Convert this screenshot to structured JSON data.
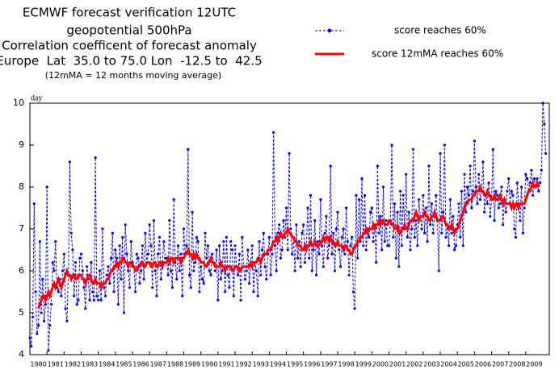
{
  "chart_data": {
    "type": "line",
    "title_lines": [
      "ECMWF forecast verification 12UTC",
      "geopotential 500hPa",
      "Correlation coefficent of forecast anomaly",
      "Europe  Lat  35.0 to 75.0 Lon  -12.5 to  42.5"
    ],
    "subtitle": "(12mMA = 12 months moving average)",
    "y_label": "day",
    "ylim": [
      4,
      10
    ],
    "yticks": [
      4,
      5,
      6,
      7,
      8,
      9,
      10
    ],
    "categories": [
      null,
      null,
      null,
      null,
      null,
      null,
      "1980",
      null,
      null,
      null,
      null,
      null,
      null,
      null,
      null,
      null,
      null,
      null,
      "1981",
      null,
      null,
      null,
      null,
      null,
      null,
      null,
      null,
      null,
      null,
      null,
      "1982",
      null,
      null,
      null,
      null,
      null,
      null,
      null,
      null,
      null,
      null,
      null,
      "1983",
      null,
      null,
      null,
      null,
      null,
      null,
      null,
      null,
      null,
      null,
      null,
      "1984",
      null,
      null,
      null,
      null,
      null,
      null,
      null,
      null,
      null,
      null,
      null,
      "1985",
      null,
      null,
      null,
      null,
      null,
      null,
      null,
      null,
      null,
      null,
      null,
      "1986",
      null,
      null,
      null,
      null,
      null,
      null,
      null,
      null,
      null,
      null,
      null,
      "1987",
      null,
      null,
      null,
      null,
      null,
      null,
      null,
      null,
      null,
      null,
      null,
      "1988",
      null,
      null,
      null,
      null,
      null,
      null,
      null,
      null,
      null,
      null,
      null,
      "1989",
      null,
      null,
      null,
      null,
      null,
      null,
      null,
      null,
      null,
      null,
      null,
      "1990",
      null,
      null,
      null,
      null,
      null,
      null,
      null,
      null,
      null,
      null,
      null,
      "1991",
      null,
      null,
      null,
      null,
      null,
      null,
      null,
      null,
      null,
      null,
      null,
      "1992",
      null,
      null,
      null,
      null,
      null,
      null,
      null,
      null,
      null,
      null,
      null,
      "1993",
      null,
      null,
      null,
      null,
      null,
      null,
      null,
      null,
      null,
      null,
      null,
      "1994",
      null,
      null,
      null,
      null,
      null,
      null,
      null,
      null,
      null,
      null,
      null,
      "1995",
      null,
      null,
      null,
      null,
      null,
      null,
      null,
      null,
      null,
      null,
      null,
      "1996",
      null,
      null,
      null,
      null,
      null,
      null,
      null,
      null,
      null,
      null,
      null,
      "1997",
      null,
      null,
      null,
      null,
      null,
      null,
      null,
      null,
      null,
      null,
      null,
      "1998",
      null,
      null,
      null,
      null,
      null,
      null,
      null,
      null,
      null,
      null,
      null,
      "1999",
      null,
      null,
      null,
      null,
      null,
      null,
      null,
      null,
      null,
      null,
      null,
      "2000",
      null,
      null,
      null,
      null,
      null,
      null,
      null,
      null,
      null,
      null,
      null,
      "2001",
      null,
      null,
      null,
      null,
      null,
      null,
      null,
      null,
      null,
      null,
      null,
      "2002",
      null,
      null,
      null,
      null,
      null,
      null,
      null,
      null,
      null,
      null,
      null,
      "2003",
      null,
      null,
      null,
      null,
      null,
      null,
      null,
      null,
      null,
      null,
      null,
      "2004",
      null,
      null,
      null,
      null,
      null,
      null,
      null,
      null,
      null,
      null,
      null,
      "2005",
      null,
      null,
      null,
      null,
      null,
      null,
      null,
      null,
      null,
      null,
      null,
      "2006",
      null,
      null,
      null,
      null,
      null,
      null,
      null,
      null,
      null,
      null,
      null,
      "2007",
      null,
      null,
      null,
      null,
      null,
      null,
      null,
      null,
      null,
      null,
      null,
      "2008",
      null,
      null,
      null,
      null,
      null,
      null,
      null,
      null,
      null,
      null,
      null,
      "2009",
      null,
      null,
      null,
      null,
      null,
      null,
      null,
      null
    ],
    "series": [
      {
        "name": "score reaches 60%",
        "color": "#0000ff",
        "style": "dashed-dots",
        "values": [
          4.4,
          4.2,
          4.9,
          7.6,
          5.5,
          4.5,
          4.7,
          6.7,
          5.0,
          5.8,
          4.8,
          5.2,
          8.0,
          4.1,
          4.7,
          5.2,
          6.2,
          6.0,
          6.7,
          5.6,
          5.5,
          5.8,
          5.4,
          6.0,
          6.4,
          5.1,
          4.8,
          5.9,
          8.6,
          6.9,
          6.5,
          5.4,
          6.2,
          5.2,
          5.3,
          6.3,
          6.4,
          6.0,
          5.6,
          5.1,
          6.1,
          5.8,
          5.3,
          6.2,
          5.5,
          5.3,
          8.7,
          5.4,
          5.3,
          6.0,
          5.3,
          7.0,
          5.6,
          5.4,
          5.9,
          6.1,
          5.7,
          6.3,
          6.9,
          5.5,
          6.5,
          6.3,
          5.2,
          6.6,
          5.8,
          6.8,
          5.0,
          7.1,
          6.4,
          6.0,
          5.6,
          6.7,
          6.2,
          6.1,
          5.5,
          6.4,
          6.3,
          5.7,
          6.0,
          6.6,
          5.8,
          6.9,
          6.2,
          6.4,
          7.1,
          6.6,
          5.6,
          7.2,
          6.0,
          5.4,
          6.4,
          6.8,
          5.8,
          6.2,
          6.7,
          6.3,
          6.3,
          5.9,
          7.2,
          6.0,
          5.6,
          7.7,
          6.2,
          5.8,
          6.6,
          6.0,
          6.4,
          5.4,
          7.0,
          6.4,
          6.6,
          8.9,
          5.9,
          5.6,
          7.4,
          6.0,
          6.2,
          6.8,
          6.7,
          5.5,
          6.1,
          5.8,
          5.7,
          6.9,
          6.3,
          6.6,
          6.0,
          5.9,
          6.4,
          6.2,
          6.0,
          6.5,
          5.3,
          6.6,
          5.8,
          6.0,
          6.7,
          5.5,
          6.8,
          5.9,
          5.6,
          6.7,
          6.5,
          5.4,
          6.6,
          6.1,
          5.9,
          6.4,
          5.3,
          6.8,
          6.1,
          5.8,
          6.0,
          6.5,
          5.7,
          6.2,
          6.6,
          5.5,
          6.2,
          6.0,
          5.4,
          6.7,
          5.9,
          6.5,
          6.9,
          6.1,
          5.8,
          6.4,
          6.8,
          5.9,
          6.4,
          9.3,
          6.6,
          6.0,
          6.9,
          7.1,
          6.3,
          6.5,
          7.2,
          6.8,
          7.5,
          6.5,
          8.8,
          7.0,
          6.4,
          6.8,
          6.0,
          7.1,
          6.3,
          6.7,
          6.1,
          6.9,
          7.1,
          6.2,
          6.6,
          7.5,
          6.3,
          7.8,
          6.0,
          6.5,
          7.2,
          5.9,
          6.7,
          6.4,
          7.7,
          6.6,
          6.1,
          6.9,
          7.3,
          6.3,
          6.6,
          8.5,
          6.4,
          6.9,
          6.0,
          7.0,
          7.4,
          6.5,
          6.1,
          6.8,
          7.0,
          6.4,
          7.5,
          6.7,
          5.9,
          6.6,
          6.8,
          5.5,
          5.1,
          7.8,
          6.3,
          7.7,
          6.7,
          8.2,
          6.6,
          7.8,
          6.5,
          7.0,
          6.8,
          7.4,
          7.5,
          6.7,
          7.1,
          6.2,
          8.5,
          6.9,
          7.3,
          6.5,
          8.0,
          6.7,
          7.2,
          6.6,
          6.6,
          7.2,
          9.0,
          6.8,
          7.6,
          6.3,
          7.4,
          6.1,
          7.9,
          6.6,
          7.8,
          7.0,
          8.3,
          6.8,
          7.4,
          6.5,
          7.0,
          8.9,
          6.8,
          7.2,
          6.6,
          7.7,
          7.3,
          7.0,
          7.8,
          6.9,
          7.5,
          6.7,
          8.5,
          7.1,
          7.6,
          6.9,
          7.3,
          7.8,
          7.2,
          6.0,
          8.8,
          6.9,
          7.4,
          9.0,
          6.8,
          7.1,
          6.6,
          7.7,
          6.9,
          7.3,
          6.5,
          6.6,
          7.1,
          7.6,
          6.8,
          7.9,
          6.6,
          8.3,
          7.4,
          8.0,
          7.8,
          8.5,
          7.5,
          7.9,
          9.1,
          8.0,
          7.6,
          8.3,
          7.7,
          7.9,
          8.6,
          7.4,
          7.8,
          7.6,
          8.1,
          7.3,
          7.7,
          8.9,
          7.2,
          7.9,
          7.8,
          7.5,
          7.6,
          8.0,
          7.1,
          7.7,
          7.4,
          7.9,
          8.2,
          7.6,
          7.9,
          7.8,
          7.0,
          6.8,
          8.1,
          7.6,
          7.2,
          8.0,
          6.9,
          7.5,
          8.3,
          8.2,
          7.9,
          8.1,
          8.4,
          7.8,
          8.2,
          8.0,
          8.2,
          7.9,
          8.1,
          8.4,
          10.0,
          9.5,
          8.8
        ]
      },
      {
        "name": "score 12mMA reaches 60%",
        "color": "#ff0000",
        "style": "thick",
        "values": [
          null,
          null,
          null,
          null,
          null,
          null,
          5.1,
          5.2,
          5.3,
          5.4,
          5.4,
          5.3,
          5.4,
          5.5,
          5.4,
          5.5,
          5.6,
          5.7,
          5.6,
          5.7,
          5.8,
          5.7,
          5.6,
          5.7,
          5.8,
          5.9,
          6.0,
          5.9,
          5.9,
          5.8,
          5.9,
          5.9,
          5.8,
          5.8,
          5.9,
          5.9,
          5.9,
          5.8,
          5.8,
          5.7,
          5.8,
          5.9,
          5.9,
          5.8,
          5.7,
          5.7,
          5.8,
          5.7,
          5.7,
          5.7,
          5.6,
          5.7,
          5.7,
          5.7,
          5.8,
          5.8,
          5.9,
          6.0,
          6.0,
          6.1,
          6.1,
          6.2,
          6.1,
          6.2,
          6.2,
          6.3,
          6.3,
          6.2,
          6.2,
          6.1,
          6.2,
          6.2,
          6.1,
          6.1,
          6.0,
          6.0,
          6.1,
          6.1,
          6.2,
          6.2,
          6.1,
          6.1,
          6.2,
          6.2,
          6.2,
          6.1,
          6.1,
          6.2,
          6.2,
          6.1,
          6.1,
          6.2,
          6.2,
          6.1,
          6.2,
          6.2,
          6.2,
          6.3,
          6.2,
          6.3,
          6.3,
          6.2,
          6.3,
          6.3,
          6.3,
          6.3,
          6.2,
          6.3,
          6.3,
          6.4,
          6.4,
          6.5,
          6.4,
          6.4,
          6.3,
          6.4,
          6.3,
          6.4,
          6.3,
          6.3,
          6.2,
          6.2,
          6.2,
          6.1,
          6.1,
          6.2,
          6.2,
          6.3,
          6.2,
          6.2,
          6.1,
          6.1,
          6.1,
          6.1,
          6.2,
          6.1,
          6.1,
          6.0,
          6.1,
          6.1,
          6.1,
          6.1,
          6.0,
          6.0,
          6.1,
          6.1,
          6.1,
          6.0,
          6.0,
          6.1,
          6.1,
          6.1,
          6.1,
          6.1,
          6.1,
          6.2,
          6.1,
          6.2,
          6.2,
          6.2,
          6.3,
          6.3,
          6.2,
          6.3,
          6.4,
          6.4,
          6.4,
          6.5,
          6.5,
          6.5,
          6.6,
          6.7,
          6.7,
          6.8,
          6.7,
          6.8,
          6.9,
          6.8,
          6.8,
          6.9,
          6.9,
          7.0,
          6.9,
          6.9,
          6.8,
          6.8,
          6.7,
          6.7,
          6.6,
          6.6,
          6.6,
          6.5,
          6.5,
          6.6,
          6.5,
          6.6,
          6.6,
          6.7,
          6.6,
          6.6,
          6.7,
          6.6,
          6.6,
          6.6,
          6.7,
          6.7,
          6.8,
          6.7,
          6.8,
          6.8,
          6.7,
          6.8,
          6.7,
          6.7,
          6.6,
          6.6,
          6.7,
          6.6,
          6.6,
          6.6,
          6.5,
          6.6,
          6.6,
          6.5,
          6.5,
          6.4,
          6.4,
          6.5,
          6.6,
          6.6,
          6.7,
          6.7,
          6.8,
          6.8,
          6.9,
          6.9,
          7.0,
          6.9,
          7.0,
          7.0,
          7.0,
          7.1,
          7.0,
          7.1,
          7.1,
          7.2,
          7.1,
          7.2,
          7.2,
          7.1,
          7.1,
          7.1,
          7.2,
          7.2,
          7.1,
          7.1,
          7.0,
          7.0,
          7.1,
          6.9,
          6.9,
          7.0,
          7.0,
          7.1,
          7.0,
          7.0,
          7.1,
          7.2,
          7.2,
          7.2,
          7.3,
          7.4,
          7.3,
          7.2,
          7.3,
          7.3,
          7.3,
          7.4,
          7.3,
          7.3,
          7.2,
          7.2,
          7.3,
          7.3,
          7.4,
          7.3,
          7.2,
          7.2,
          7.2,
          7.3,
          7.3,
          7.2,
          7.1,
          7.1,
          7.0,
          7.0,
          7.1,
          7.0,
          6.9,
          7.0,
          7.0,
          7.1,
          7.2,
          7.3,
          7.4,
          7.5,
          7.6,
          7.6,
          7.7,
          7.7,
          7.7,
          7.8,
          7.8,
          7.9,
          7.9,
          7.9,
          8.0,
          7.9,
          7.9,
          7.8,
          7.8,
          7.9,
          7.8,
          7.8,
          7.7,
          7.7,
          7.8,
          7.7,
          7.7,
          7.7,
          7.8,
          7.7,
          7.6,
          7.7,
          7.6,
          7.6,
          7.6,
          7.6,
          7.5,
          7.6,
          7.5,
          7.6,
          7.6,
          7.5,
          7.6,
          7.6,
          7.6,
          7.6,
          7.7,
          7.8,
          7.9,
          7.9,
          8.0,
          8.1,
          8.0,
          8.0,
          8.1,
          8.0,
          null,
          null,
          null,
          null,
          null
        ]
      }
    ]
  }
}
